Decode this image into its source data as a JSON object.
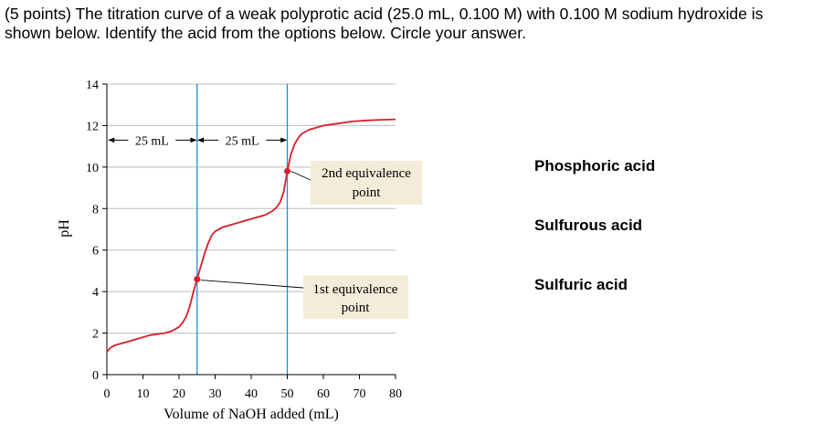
{
  "question": {
    "line1": "(5 points) The titration curve of a weak polyprotic acid (25.0 mL, 0.100 M) with 0.100 M sodium hydroxide is",
    "line2": "shown below. Identify the acid from the options below. Circle your answer."
  },
  "options": [
    "Phosphoric acid",
    "Sulfurous acid",
    "Sulfuric acid"
  ],
  "colors": {
    "curve": "#d81e2a",
    "equivalence_lines": "#1e8fd6",
    "grid": "#bdbdbd",
    "callout_fill": "#f4ecd8",
    "axis": "#000000"
  },
  "chart_data": {
    "type": "line",
    "xlabel": "Volume of NaOH added (mL)",
    "ylabel": "pH",
    "xlim": [
      0,
      80
    ],
    "ylim": [
      0,
      14
    ],
    "x_ticks": [
      0,
      10,
      20,
      30,
      40,
      50,
      60,
      70,
      80
    ],
    "y_ticks": [
      0,
      2,
      4,
      6,
      8,
      10,
      12,
      14
    ],
    "grid": true,
    "series": [
      {
        "x": [
          0,
          1,
          2,
          4,
          6,
          8,
          10,
          12,
          14,
          16,
          18,
          20,
          21,
          22,
          23,
          24,
          25,
          26,
          27,
          28,
          29,
          30,
          32,
          34,
          36,
          38,
          40,
          42,
          44,
          46,
          47,
          48,
          49,
          50,
          51,
          52,
          53,
          54,
          56,
          58,
          60,
          64,
          68,
          72,
          76,
          80
        ],
        "y": [
          1.1,
          1.3,
          1.4,
          1.5,
          1.6,
          1.7,
          1.8,
          1.9,
          1.95,
          2.0,
          2.1,
          2.3,
          2.5,
          2.8,
          3.3,
          4.0,
          4.6,
          5.2,
          5.8,
          6.3,
          6.7,
          6.9,
          7.1,
          7.2,
          7.3,
          7.4,
          7.5,
          7.6,
          7.7,
          7.9,
          8.05,
          8.3,
          8.8,
          9.8,
          10.6,
          11.1,
          11.4,
          11.6,
          11.8,
          11.9,
          12.0,
          12.1,
          12.2,
          12.25,
          12.28,
          12.3
        ]
      }
    ],
    "equivalence_points": [
      {
        "x": 25,
        "y": 4.6,
        "label_line1": "1st equivalence",
        "label_line2": "point"
      },
      {
        "x": 50,
        "y": 9.8,
        "label_line1": "2nd equivalence",
        "label_line2": "point"
      }
    ],
    "annotations": {
      "interval1": "25 mL",
      "interval2": "25 mL",
      "interval_y": 11.3
    }
  }
}
